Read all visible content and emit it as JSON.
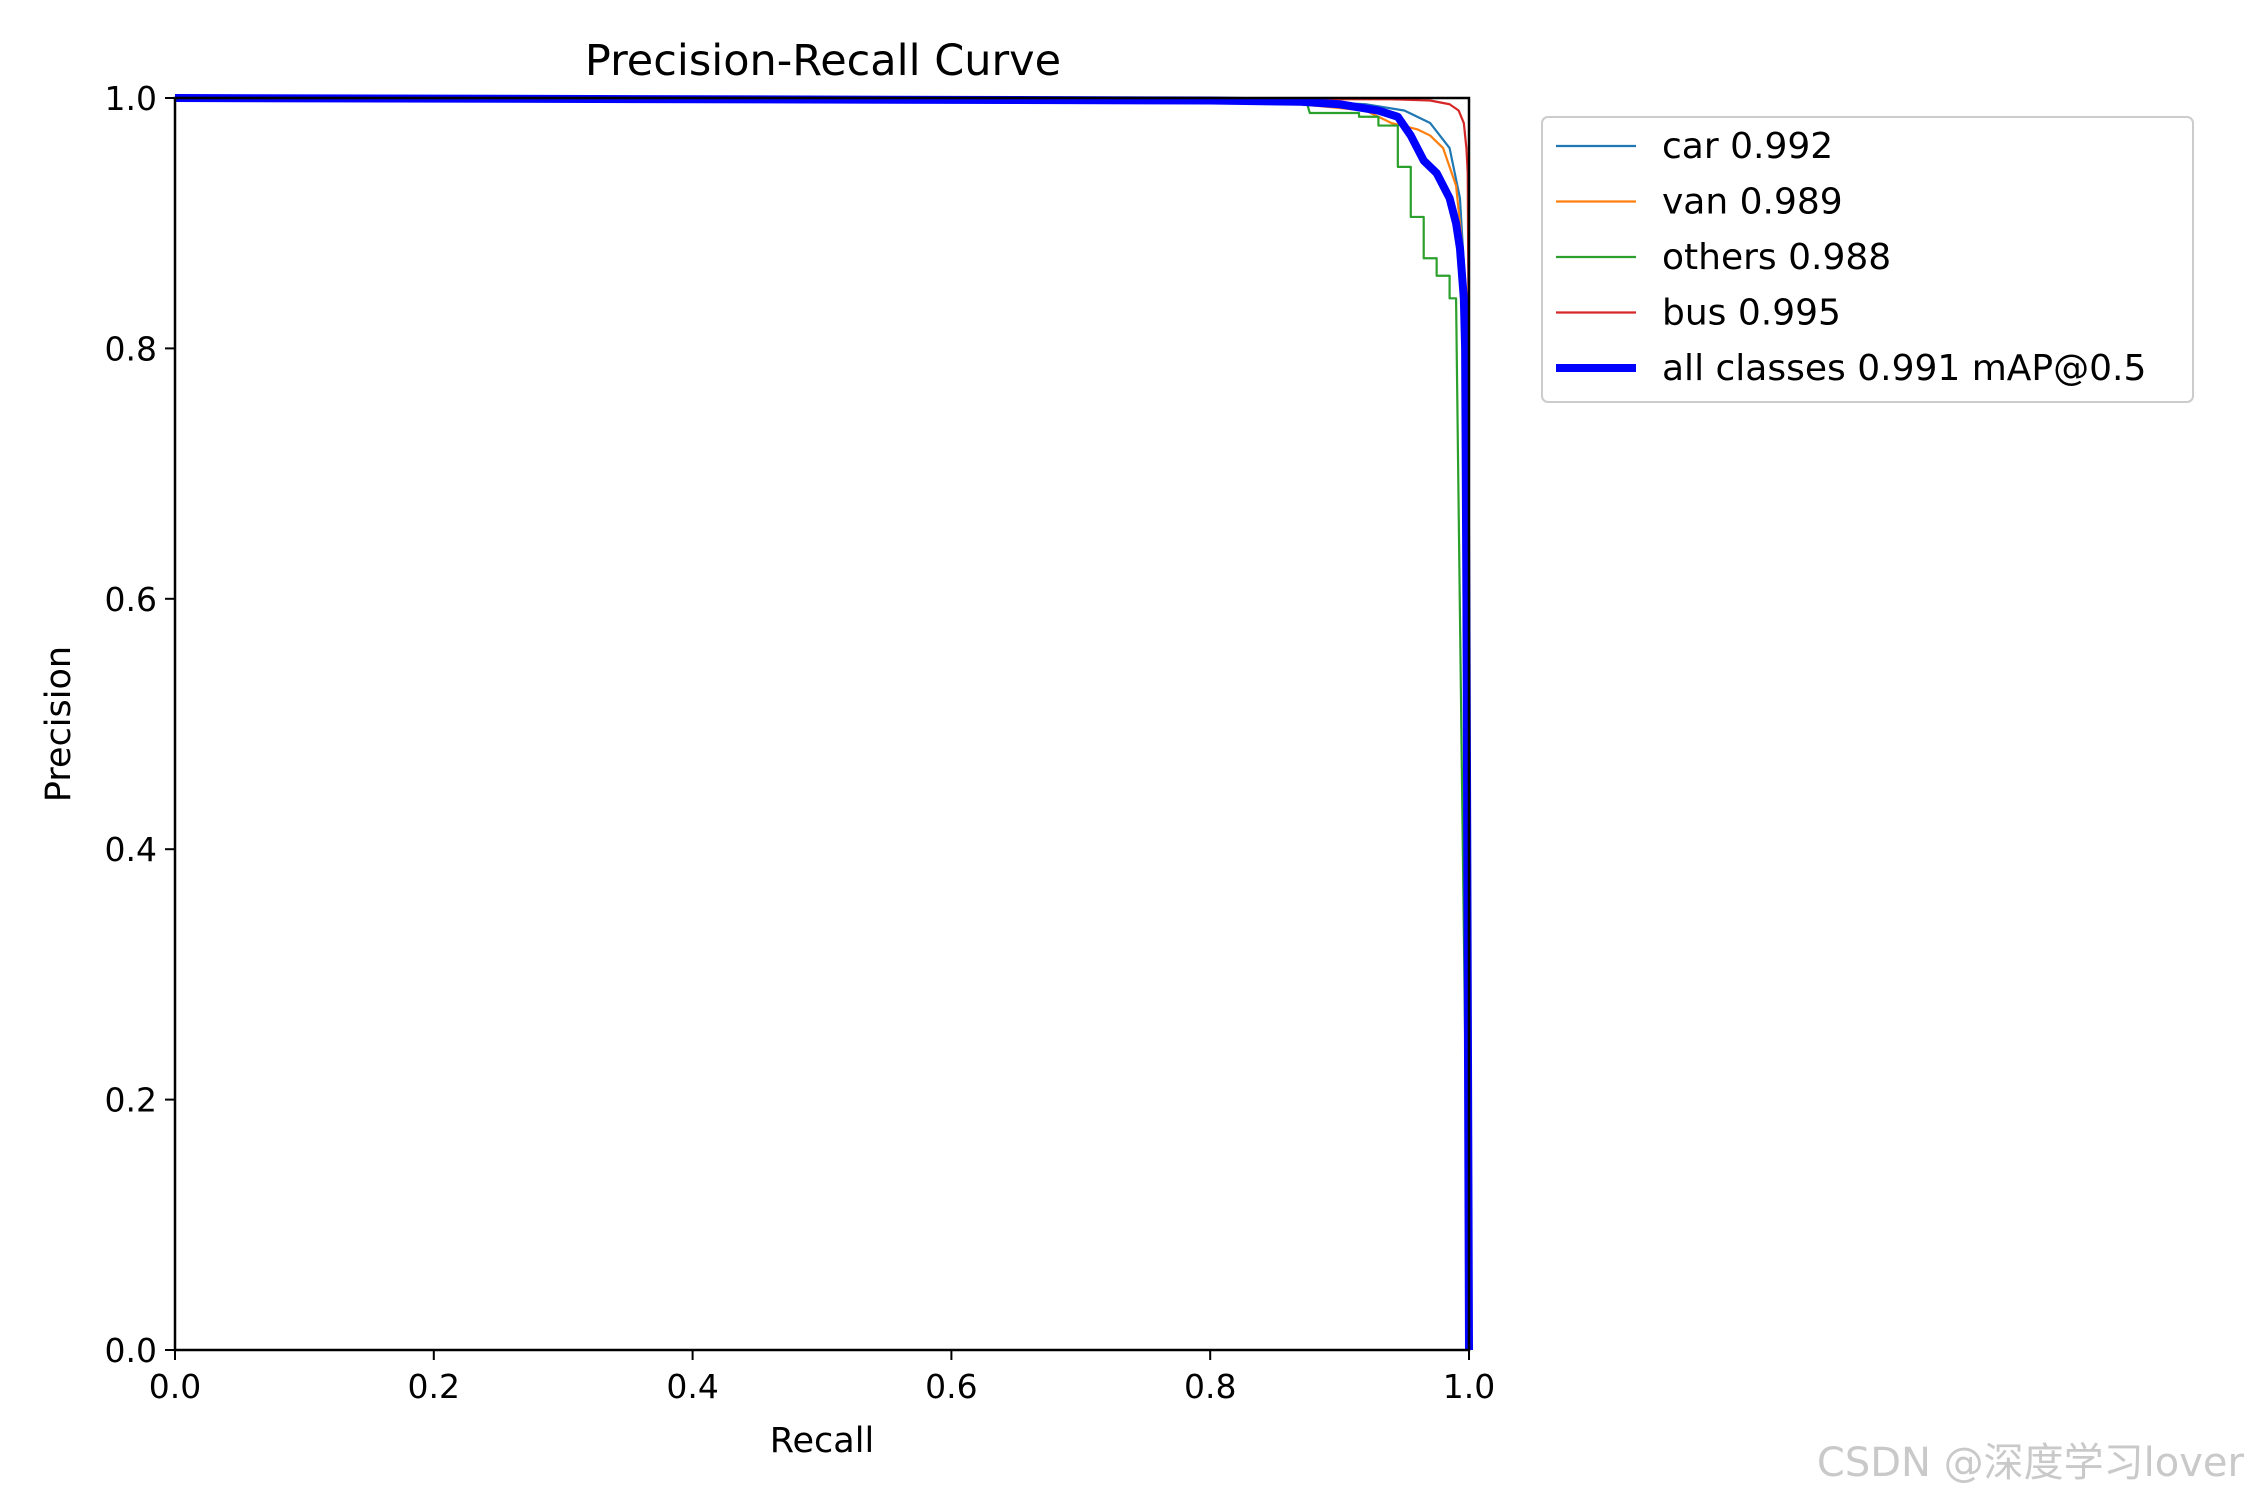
{
  "chart_data": {
    "type": "line",
    "title": "Precision-Recall Curve",
    "xlabel": "Recall",
    "ylabel": "Precision",
    "xlim": [
      0,
      1
    ],
    "ylim": [
      0,
      1
    ],
    "xticks": [
      "0.0",
      "0.2",
      "0.4",
      "0.6",
      "0.8",
      "1.0"
    ],
    "yticks": [
      "0.0",
      "0.2",
      "0.4",
      "0.6",
      "0.8",
      "1.0"
    ],
    "grid": false,
    "legend_position": "outside-right-top",
    "series": [
      {
        "name": "car 0.992",
        "color": "#1f77b4",
        "width": "thin",
        "points": [
          [
            0,
            1
          ],
          [
            0.5,
            0.999
          ],
          [
            0.8,
            0.998
          ],
          [
            0.88,
            0.997
          ],
          [
            0.92,
            0.995
          ],
          [
            0.95,
            0.99
          ],
          [
            0.97,
            0.98
          ],
          [
            0.985,
            0.96
          ],
          [
            0.993,
            0.92
          ],
          [
            0.997,
            0.85
          ],
          [
            0.999,
            0.5
          ],
          [
            1,
            0
          ]
        ]
      },
      {
        "name": "van 0.989",
        "color": "#ff7f0e",
        "width": "thin",
        "points": [
          [
            0,
            1
          ],
          [
            0.7,
            0.999
          ],
          [
            0.87,
            0.995
          ],
          [
            0.92,
            0.99
          ],
          [
            0.94,
            0.98
          ],
          [
            0.96,
            0.975
          ],
          [
            0.97,
            0.97
          ],
          [
            0.98,
            0.96
          ],
          [
            0.99,
            0.93
          ],
          [
            0.995,
            0.88
          ],
          [
            0.997,
            0.8
          ],
          [
            0.999,
            0.6
          ],
          [
            1,
            0
          ]
        ]
      },
      {
        "name": "others 0.988",
        "color": "#2ca02c",
        "width": "thin",
        "points": [
          [
            0,
            1
          ],
          [
            0.8,
            0.998
          ],
          [
            0.875,
            0.995
          ],
          [
            0.877,
            0.988
          ],
          [
            0.915,
            0.988
          ],
          [
            0.915,
            0.985
          ],
          [
            0.93,
            0.985
          ],
          [
            0.93,
            0.978
          ],
          [
            0.945,
            0.978
          ],
          [
            0.945,
            0.945
          ],
          [
            0.955,
            0.945
          ],
          [
            0.955,
            0.905
          ],
          [
            0.965,
            0.905
          ],
          [
            0.965,
            0.872
          ],
          [
            0.975,
            0.872
          ],
          [
            0.975,
            0.858
          ],
          [
            0.985,
            0.858
          ],
          [
            0.985,
            0.84
          ],
          [
            0.99,
            0.84
          ],
          [
            1,
            0
          ]
        ]
      },
      {
        "name": "bus 0.995",
        "color": "#d62728",
        "width": "thin",
        "points": [
          [
            0,
            1
          ],
          [
            0.94,
            0.999
          ],
          [
            0.97,
            0.998
          ],
          [
            0.985,
            0.995
          ],
          [
            0.992,
            0.99
          ],
          [
            0.996,
            0.98
          ],
          [
            0.998,
            0.96
          ],
          [
            0.999,
            0.94
          ],
          [
            0.9995,
            0.85
          ],
          [
            1,
            0
          ]
        ]
      },
      {
        "name": "all classes 0.991 mAP@0.5",
        "color": "#0000ff",
        "width": "thick",
        "points": [
          [
            0,
            1
          ],
          [
            0.8,
            0.998
          ],
          [
            0.87,
            0.997
          ],
          [
            0.9,
            0.995
          ],
          [
            0.93,
            0.99
          ],
          [
            0.945,
            0.985
          ],
          [
            0.955,
            0.97
          ],
          [
            0.965,
            0.95
          ],
          [
            0.975,
            0.94
          ],
          [
            0.985,
            0.92
          ],
          [
            0.99,
            0.9
          ],
          [
            0.993,
            0.88
          ],
          [
            0.996,
            0.84
          ],
          [
            0.997,
            0.8
          ],
          [
            0.998,
            0.6
          ],
          [
            0.999,
            0.3
          ],
          [
            1,
            0
          ]
        ]
      }
    ]
  },
  "watermark": "CSDN @深度学习lover"
}
